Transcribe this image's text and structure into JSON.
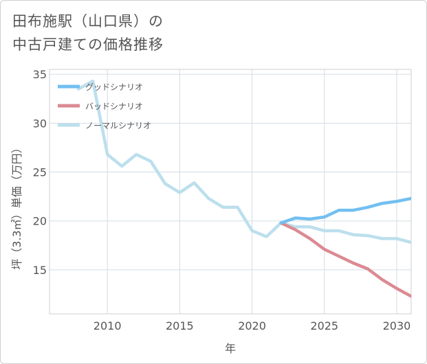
{
  "title_lines": [
    "田布施駅（山口県）の",
    "中古戸建ての価格推移"
  ],
  "chart_data": {
    "type": "line",
    "xlabel": "年",
    "ylabel": "坪（3.3㎡）単価（万円）",
    "xlim": [
      2006,
      2031
    ],
    "ylim": [
      10.5,
      35.5
    ],
    "xticks": [
      2010,
      2015,
      2020,
      2025,
      2030
    ],
    "yticks": [
      15,
      20,
      25,
      30,
      35
    ],
    "grid": true,
    "legend_position": "top-left",
    "series": [
      {
        "name": "グッドシナリオ",
        "color": "#72bff0",
        "x": [
          2022,
          2023,
          2024,
          2025,
          2026,
          2027,
          2028,
          2029,
          2030,
          2031
        ],
        "y": [
          19.8,
          20.3,
          20.2,
          20.4,
          21.1,
          21.1,
          21.4,
          21.8,
          22.0,
          22.3
        ]
      },
      {
        "name": "バッドシナリオ",
        "color": "#dc8a93",
        "x": [
          2022,
          2023,
          2024,
          2025,
          2026,
          2027,
          2028,
          2029,
          2030,
          2031
        ],
        "y": [
          19.8,
          19.1,
          18.2,
          17.1,
          16.4,
          15.7,
          15.1,
          14.0,
          13.1,
          12.3
        ]
      },
      {
        "name": "ノーマルシナリオ",
        "color": "#bcdfec",
        "x": [
          2008,
          2009,
          2010,
          2011,
          2012,
          2013,
          2014,
          2015,
          2016,
          2017,
          2018,
          2019,
          2020,
          2021,
          2022,
          2023,
          2024,
          2025,
          2026,
          2027,
          2028,
          2029,
          2030,
          2031
        ],
        "y": [
          33.5,
          34.3,
          26.8,
          25.6,
          26.8,
          26.1,
          23.8,
          22.9,
          23.9,
          22.3,
          21.4,
          21.4,
          19.0,
          18.4,
          19.8,
          19.4,
          19.4,
          19.0,
          19.0,
          18.6,
          18.5,
          18.2,
          18.2,
          17.8
        ]
      }
    ]
  }
}
